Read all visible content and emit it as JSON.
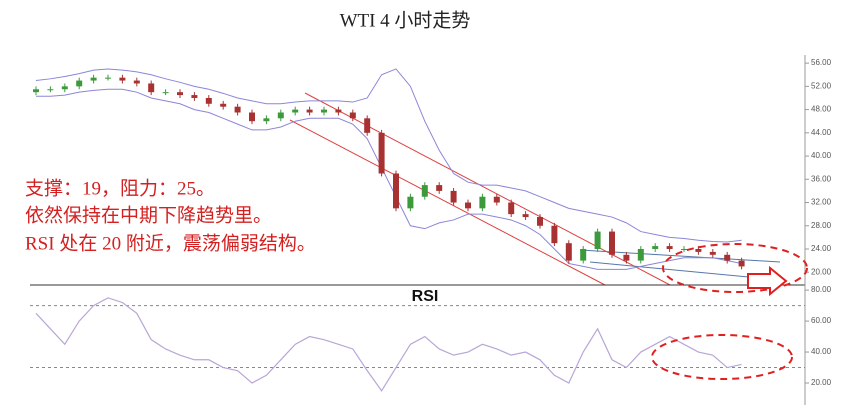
{
  "title": "WTI 4 小时走势",
  "annotations": [
    "支撑：19，阻力：25。",
    "依然保持在中期下降趋势里。",
    "RSI 处在 20 附近，震荡偏弱结构。"
  ],
  "chart_data": [
    {
      "type": "candlestick",
      "open": [
        51,
        51.5,
        51.5,
        52,
        53,
        53.5,
        53.5,
        53,
        52.5,
        51,
        51,
        50.5,
        50,
        49,
        48.5,
        47.5,
        46,
        46.5,
        47.5,
        48,
        47.5,
        48,
        47.5,
        46.5,
        44,
        37,
        31,
        33,
        35,
        34,
        32,
        31,
        33,
        32,
        30,
        29.5,
        28,
        25,
        22,
        24,
        27,
        23,
        22,
        24,
        24.5,
        24,
        24,
        23.5,
        23,
        22
      ],
      "high": [
        52,
        52,
        52.5,
        53.5,
        54,
        54,
        54,
        53.5,
        53,
        51.5,
        51.5,
        51,
        50.5,
        49.5,
        49,
        48,
        47,
        48,
        48.5,
        48.5,
        48.5,
        48.5,
        48,
        47,
        44.5,
        37.5,
        33.5,
        35.5,
        35.5,
        34.5,
        32.5,
        33.5,
        33.5,
        32.5,
        30.5,
        30,
        28.5,
        25.5,
        24.5,
        27.5,
        27.5,
        23.5,
        24.5,
        25,
        25,
        24.5,
        24.5,
        24,
        23.5,
        22.5
      ],
      "low": [
        50.5,
        51,
        51,
        51.5,
        52.5,
        53,
        52.5,
        52,
        50.5,
        50.5,
        50,
        49.5,
        48.5,
        48,
        47,
        45.5,
        45.5,
        46,
        47,
        47,
        47,
        47,
        46,
        43.5,
        36.5,
        30.5,
        30.5,
        32.5,
        33.5,
        31.5,
        30.5,
        30.5,
        31.5,
        29.5,
        29,
        27.5,
        24.5,
        21.5,
        21.5,
        23.5,
        22.5,
        21.5,
        21.5,
        23.5,
        23.5,
        23.5,
        23,
        22.5,
        21.5,
        20.5
      ],
      "close": [
        51.5,
        51.5,
        52,
        53,
        53.5,
        53.5,
        53,
        52.5,
        51,
        51,
        50.5,
        50,
        49,
        48.5,
        47.5,
        46,
        46.5,
        47.5,
        48,
        47.5,
        48,
        47.5,
        46.5,
        44,
        37,
        31,
        33,
        35,
        34,
        32,
        31,
        33,
        32,
        30,
        29.5,
        28,
        25,
        22,
        24,
        27,
        23,
        22,
        24,
        24.5,
        24,
        24,
        23.5,
        23,
        22,
        21
      ],
      "up_color": "#3c9a3c",
      "down_color": "#a83232",
      "bands": {
        "color": "#8b86d8",
        "upper": [
          53,
          53.3,
          53.7,
          54.2,
          54.8,
          55,
          54.8,
          54.5,
          54,
          53.3,
          52.7,
          52,
          51.5,
          50.8,
          50,
          49.5,
          49,
          49,
          49.3,
          49.5,
          49.5,
          49.5,
          49.3,
          50,
          54,
          55,
          52,
          46,
          41,
          37,
          35.5,
          35,
          35,
          34.5,
          34,
          33,
          32,
          31,
          30.5,
          30,
          29.5,
          28.5,
          27,
          26.5,
          26,
          25.8,
          25.5,
          25.3,
          25.2,
          25.5
        ],
        "lower": [
          50.3,
          50.3,
          50.5,
          51,
          51.3,
          51.5,
          51.5,
          51,
          50,
          49.5,
          49,
          48,
          47.5,
          46.5,
          45.5,
          44.5,
          44.5,
          45,
          46,
          46.5,
          46.5,
          46.5,
          45.5,
          43,
          38,
          33,
          28,
          27.5,
          28.5,
          29,
          30,
          30,
          29.5,
          29,
          28,
          26.5,
          24,
          21.5,
          21,
          20.5,
          20.5,
          20.5,
          21,
          21.5,
          22,
          22.5,
          22.5,
          22.5,
          22,
          21.5
        ]
      },
      "ylim": [
        17.8,
        57.4
      ],
      "yticks": [
        {
          "value": 20,
          "label": "20.00"
        },
        {
          "value": 24,
          "label": "24.00"
        },
        {
          "value": 28,
          "label": "28.00"
        },
        {
          "value": 32,
          "label": "32.00"
        },
        {
          "value": 36,
          "label": "36.00"
        },
        {
          "value": 40,
          "label": "40.00"
        },
        {
          "value": 44,
          "label": "44.00"
        },
        {
          "value": 48,
          "label": "48.00"
        },
        {
          "value": 52,
          "label": "52.00"
        },
        {
          "value": 56,
          "label": "56.00"
        }
      ]
    },
    {
      "type": "line",
      "title": "RSI",
      "color": "#b8a6d6",
      "values": [
        65,
        55,
        45,
        60,
        70,
        75,
        72,
        65,
        48,
        42,
        38,
        35,
        35,
        30,
        28,
        20,
        25,
        35,
        45,
        50,
        48,
        45,
        42,
        28,
        15,
        30,
        45,
        50,
        42,
        38,
        40,
        45,
        42,
        38,
        40,
        35,
        25,
        20,
        40,
        55,
        35,
        30,
        40,
        45,
        50,
        45,
        40,
        38,
        30,
        32
      ],
      "hlines": [
        70,
        30
      ],
      "ylim": [
        10,
        82
      ],
      "yticks": [
        {
          "value": 20,
          "label": "20.00"
        },
        {
          "value": 40,
          "label": "40.00"
        },
        {
          "value": 60,
          "label": "60.00"
        },
        {
          "value": 80,
          "label": "80.00"
        }
      ]
    }
  ]
}
